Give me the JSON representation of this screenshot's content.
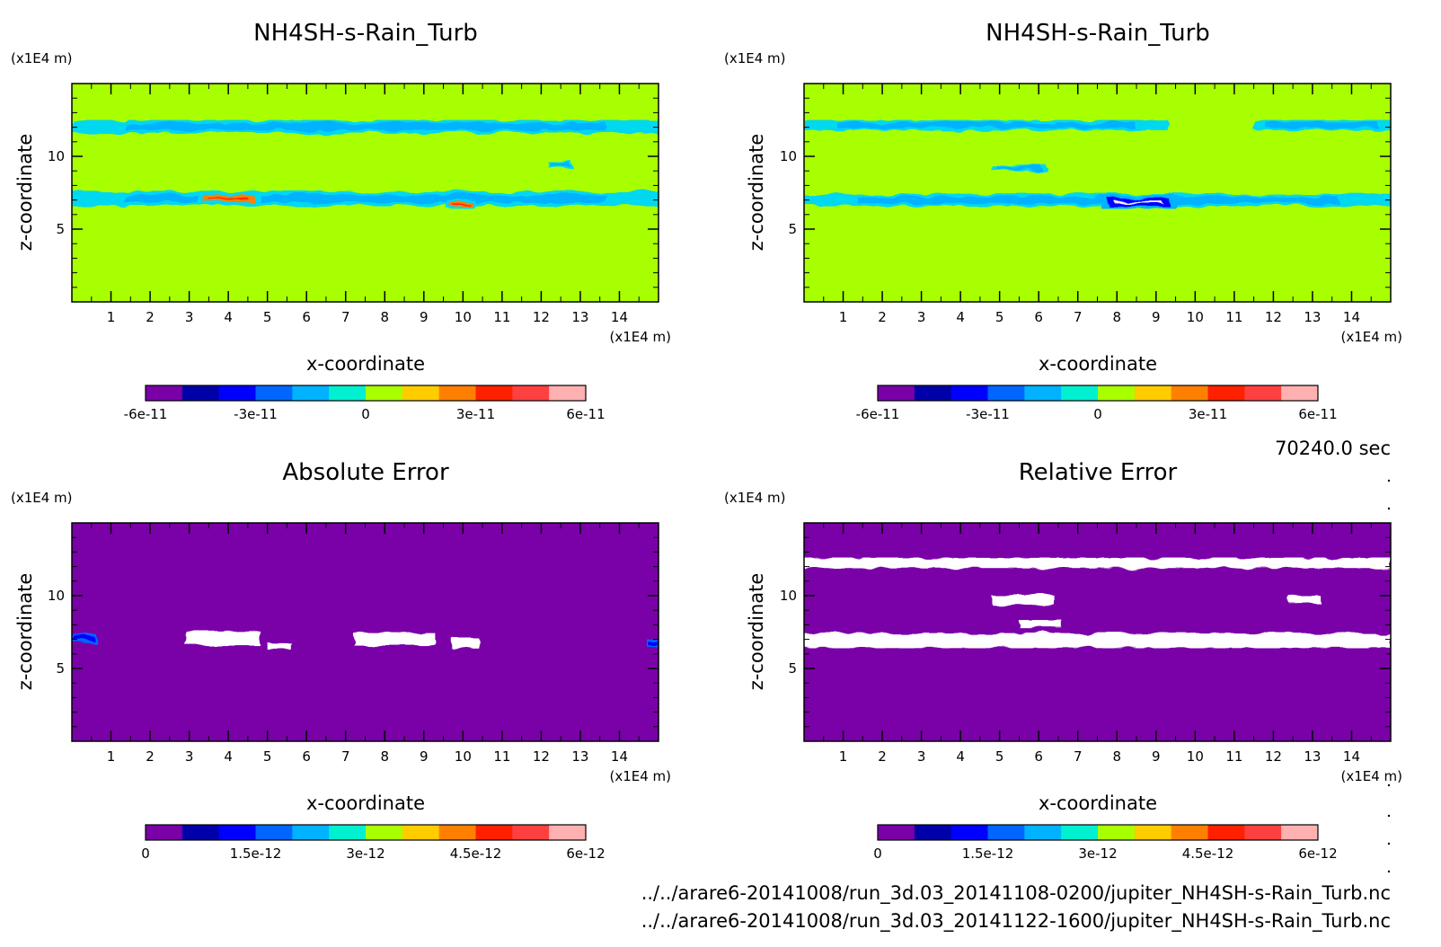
{
  "time_label": "70240.0 sec",
  "file_paths": [
    "../../arare6-20141008/run_3d.03_20141108-0200/jupiter_NH4SH-s-Rain_Turb.nc",
    "../../arare6-20141008/run_3d.03_20141122-1600/jupiter_NH4SH-s-Rain_Turb.nc"
  ],
  "palette": [
    "#7a00a8",
    "#0000a8",
    "#0000ff",
    "#0066ff",
    "#00b2ff",
    "#00f0d0",
    "#a8ff00",
    "#ffcc00",
    "#ff8000",
    "#ff2000",
    "#ff4040",
    "#ffb0b0"
  ],
  "chart_data": [
    {
      "type": "heatmap",
      "title": "NH4SH-s-Rain_Turb",
      "xlabel": "x-coordinate",
      "ylabel": "z-coordinate",
      "x_unit": "(x1E4 m)",
      "y_unit": "(x1E4 m)",
      "xlim": [
        0,
        15
      ],
      "ylim": [
        0,
        15
      ],
      "x_ticks": [
        "1",
        "2",
        "3",
        "4",
        "5",
        "6",
        "7",
        "8",
        "9",
        "10",
        "11",
        "12",
        "13",
        "14"
      ],
      "y_ticks": [
        "5",
        "10"
      ],
      "background": "#a8ff00",
      "features": [
        {
          "value": "cyan",
          "x": [
            0.0,
            15.0
          ],
          "z": [
            11.6,
            12.5
          ]
        },
        {
          "value": "cyan",
          "x": [
            0.0,
            15.0
          ],
          "z": [
            6.6,
            7.6
          ]
        },
        {
          "value": "positive",
          "x": [
            3.2,
            4.8
          ],
          "z": [
            6.7,
            7.5
          ]
        },
        {
          "value": "positive",
          "x": [
            9.6,
            10.3
          ],
          "z": [
            6.4,
            7.0
          ]
        },
        {
          "value": "cyan",
          "x": [
            12.2,
            12.8
          ],
          "z": [
            9.2,
            9.6
          ]
        }
      ],
      "colorbar": {
        "ticks": [
          "-6e-11",
          "-3e-11",
          "0",
          "3e-11",
          "6e-11"
        ],
        "range": [
          -6e-11,
          6e-11
        ]
      }
    },
    {
      "type": "heatmap",
      "title": "NH4SH-s-Rain_Turb",
      "xlabel": "x-coordinate",
      "ylabel": "z-coordinate",
      "x_unit": "(x1E4 m)",
      "y_unit": "(x1E4 m)",
      "xlim": [
        0,
        15
      ],
      "ylim": [
        0,
        15
      ],
      "x_ticks": [
        "1",
        "2",
        "3",
        "4",
        "5",
        "6",
        "7",
        "8",
        "9",
        "10",
        "11",
        "12",
        "13",
        "14"
      ],
      "y_ticks": [
        "5",
        "10"
      ],
      "background": "#a8ff00",
      "features": [
        {
          "value": "cyan",
          "x": [
            0.0,
            9.3
          ],
          "z": [
            11.8,
            12.5
          ]
        },
        {
          "value": "cyan",
          "x": [
            11.5,
            15.0
          ],
          "z": [
            11.8,
            12.5
          ]
        },
        {
          "value": "cyan",
          "x": [
            0.0,
            15.0
          ],
          "z": [
            6.6,
            7.4
          ]
        },
        {
          "value": "mixed",
          "x": [
            7.6,
            9.5
          ],
          "z": [
            6.4,
            7.3
          ]
        },
        {
          "value": "cyan",
          "x": [
            4.8,
            6.2
          ],
          "z": [
            9.0,
            9.4
          ]
        }
      ],
      "colorbar": {
        "ticks": [
          "-6e-11",
          "-3e-11",
          "0",
          "3e-11",
          "6e-11"
        ],
        "range": [
          -6e-11,
          6e-11
        ]
      }
    },
    {
      "type": "heatmap",
      "title": "Absolute Error",
      "xlabel": "x-coordinate",
      "ylabel": "z-coordinate",
      "x_unit": "(x1E4 m)",
      "y_unit": "(x1E4 m)",
      "xlim": [
        0,
        15
      ],
      "ylim": [
        0,
        15
      ],
      "x_ticks": [
        "1",
        "2",
        "3",
        "4",
        "5",
        "6",
        "7",
        "8",
        "9",
        "10",
        "11",
        "12",
        "13",
        "14"
      ],
      "y_ticks": [
        "5",
        "10"
      ],
      "background": "#7a00a8",
      "features": [
        {
          "value": "above-max",
          "x": [
            2.9,
            4.8
          ],
          "z": [
            6.6,
            7.6
          ]
        },
        {
          "value": "above-max",
          "x": [
            5.0,
            5.6
          ],
          "z": [
            6.3,
            6.8
          ]
        },
        {
          "value": "above-max",
          "x": [
            7.2,
            9.3
          ],
          "z": [
            6.6,
            7.4
          ]
        },
        {
          "value": "above-max",
          "x": [
            9.7,
            10.4
          ],
          "z": [
            6.4,
            7.1
          ]
        },
        {
          "value": "low",
          "x": [
            0.0,
            0.6
          ],
          "z": [
            6.8,
            7.4
          ]
        },
        {
          "value": "low",
          "x": [
            14.7,
            15.0
          ],
          "z": [
            6.5,
            7.0
          ]
        }
      ],
      "colorbar": {
        "ticks": [
          "0",
          "1.5e-12",
          "3e-12",
          "4.5e-12",
          "6e-12"
        ],
        "range": [
          0,
          6e-12
        ]
      }
    },
    {
      "type": "heatmap",
      "title": "Relative Error",
      "xlabel": "x-coordinate",
      "ylabel": "z-coordinate",
      "x_unit": "(x1E4 m)",
      "y_unit": "(x1E4 m)",
      "xlim": [
        0,
        15
      ],
      "ylim": [
        0,
        15
      ],
      "x_ticks": [
        "1",
        "2",
        "3",
        "4",
        "5",
        "6",
        "7",
        "8",
        "9",
        "10",
        "11",
        "12",
        "13",
        "14"
      ],
      "y_ticks": [
        "5",
        "10"
      ],
      "background": "#7a00a8",
      "features": [
        {
          "value": "above-max",
          "x": [
            0.0,
            15.0
          ],
          "z": [
            11.9,
            12.6
          ]
        },
        {
          "value": "above-max",
          "x": [
            0.0,
            15.0
          ],
          "z": [
            6.4,
            7.4
          ]
        },
        {
          "value": "above-max",
          "x": [
            4.8,
            6.4
          ],
          "z": [
            9.4,
            10.0
          ]
        },
        {
          "value": "above-max",
          "x": [
            5.5,
            6.6
          ],
          "z": [
            7.8,
            8.3
          ]
        },
        {
          "value": "above-max",
          "x": [
            12.4,
            13.2
          ],
          "z": [
            9.5,
            10.0
          ]
        }
      ],
      "colorbar": {
        "ticks": [
          "0",
          "1.5e-12",
          "3e-12",
          "4.5e-12",
          "6e-12"
        ],
        "range": [
          0,
          6e-12
        ]
      }
    }
  ]
}
